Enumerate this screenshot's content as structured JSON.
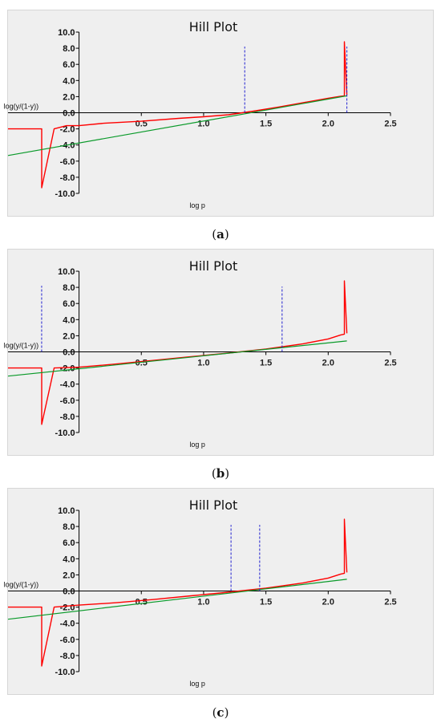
{
  "chart_data": [
    {
      "type": "line",
      "title": "Hill Plot",
      "xlabel": "log p",
      "ylabel": "log(y/(1-y))",
      "xlim": [
        -0.57,
        2.5
      ],
      "ylim": [
        -10,
        10
      ],
      "x_ticks": [
        "0.5",
        "1.0",
        "1.5",
        "2.0",
        "2.5"
      ],
      "y_ticks": [
        "10.0",
        "8.0",
        "6.0",
        "4.0",
        "2.0",
        "0.0",
        "-2.0",
        "-4.0",
        "-6.0",
        "-8.0",
        "-10.0"
      ],
      "series": [
        {
          "color": "#ff0000",
          "x": [
            -0.57,
            -0.3,
            -0.3,
            -0.2,
            -0.1,
            0.0,
            0.2,
            0.5,
            0.8,
            1.0,
            1.2,
            1.4,
            1.6,
            1.8,
            2.0,
            2.1,
            2.13,
            2.13,
            2.15
          ],
          "y": [
            -2.0,
            -2.0,
            -9.3,
            -2.0,
            -1.6,
            -1.6,
            -1.3,
            -1.05,
            -0.7,
            -0.5,
            -0.25,
            0.2,
            0.7,
            1.25,
            1.8,
            2.05,
            2.1,
            8.8,
            2.2
          ]
        },
        {
          "color": "#0a9a2a",
          "x": [
            -0.57,
            2.15
          ],
          "y": [
            -5.3,
            2.1
          ]
        },
        {
          "color": "#2020d0",
          "dashed": true,
          "x": [
            1.33,
            1.33,
            2.15,
            2.15
          ],
          "y": [
            0.0,
            8.2,
            0.0,
            8.2
          ]
        }
      ]
    },
    {
      "type": "line",
      "title": "Hill Plot",
      "xlabel": "log p",
      "ylabel": "log(y/(1-y))",
      "xlim": [
        -0.57,
        2.5
      ],
      "ylim": [
        -10,
        10
      ],
      "x_ticks": [
        "0.5",
        "1.0",
        "1.5",
        "2.0",
        "2.5"
      ],
      "y_ticks": [
        "10.0",
        "8.0",
        "6.0",
        "4.0",
        "2.0",
        "0.0",
        "-2.0",
        "-4.0",
        "-6.0",
        "-8.0",
        "-10.0"
      ],
      "series": [
        {
          "color": "#ff0000",
          "x": [
            -0.57,
            -0.3,
            -0.3,
            -0.2,
            0.0,
            0.3,
            0.6,
            0.9,
            1.2,
            1.5,
            1.8,
            2.0,
            2.1,
            2.13,
            2.13,
            2.15
          ],
          "y": [
            -2.0,
            -2.0,
            -9.0,
            -2.0,
            -1.9,
            -1.5,
            -1.05,
            -0.6,
            -0.15,
            0.35,
            1.0,
            1.6,
            2.1,
            2.2,
            8.8,
            2.3
          ]
        },
        {
          "color": "#0a9a2a",
          "x": [
            -0.57,
            2.15
          ],
          "y": [
            -3.0,
            1.35
          ]
        },
        {
          "color": "#2020d0",
          "dashed": true,
          "x": [
            -0.3,
            -0.3,
            1.63,
            1.63
          ],
          "y": [
            0.0,
            8.2,
            0.0,
            8.1
          ]
        }
      ]
    },
    {
      "type": "line",
      "title": "Hill Plot",
      "xlabel": "log p",
      "ylabel": "log(y/(1-y))",
      "xlim": [
        -0.57,
        2.5
      ],
      "ylim": [
        -10,
        10
      ],
      "x_ticks": [
        "0.5",
        "1.0",
        "1.5",
        "2.0",
        "2.5"
      ],
      "y_ticks": [
        "10.0",
        "8.0",
        "6.0",
        "4.0",
        "2.0",
        "0.0",
        "-2.0",
        "-4.0",
        "-6.0",
        "-8.0",
        "-10.0"
      ],
      "series": [
        {
          "color": "#ff0000",
          "x": [
            -0.57,
            -0.3,
            -0.3,
            -0.2,
            0.0,
            0.3,
            0.6,
            0.9,
            1.2,
            1.5,
            1.8,
            2.0,
            2.1,
            2.13,
            2.13,
            2.15
          ],
          "y": [
            -2.0,
            -2.0,
            -9.3,
            -2.0,
            -1.75,
            -1.45,
            -1.05,
            -0.6,
            -0.15,
            0.35,
            1.0,
            1.6,
            2.1,
            2.2,
            8.9,
            2.3
          ]
        },
        {
          "color": "#0a9a2a",
          "x": [
            -0.57,
            2.15
          ],
          "y": [
            -3.5,
            1.45
          ]
        },
        {
          "color": "#2020d0",
          "dashed": true,
          "x": [
            1.22,
            1.22,
            1.45,
            1.45
          ],
          "y": [
            0.0,
            8.2,
            0.0,
            8.2
          ]
        }
      ]
    }
  ],
  "captions": [
    "a",
    "b",
    "c"
  ]
}
